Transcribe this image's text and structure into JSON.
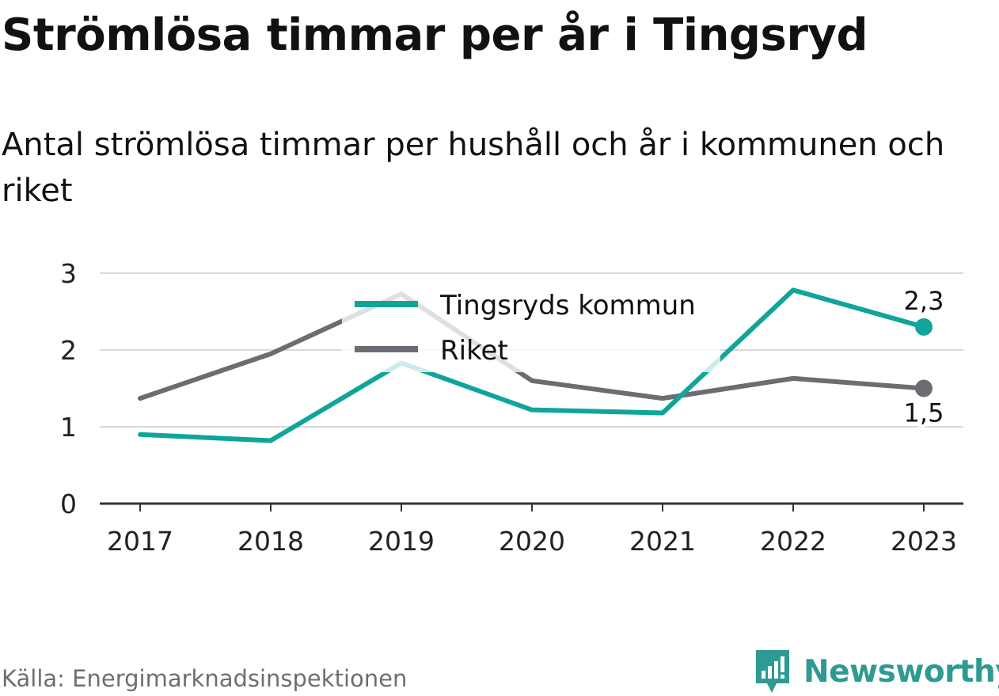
{
  "title": "Strömlösa timmar per år i Tingsryd",
  "subtitle": "Antal strömlösa timmar per hushåll och år i kommunen och riket",
  "source": "Källa: Energimarknadsinspektionen",
  "brand": "Newsworthy",
  "colors": {
    "kommun": "#0fa59a",
    "riket": "#6d6c73",
    "grid": "#d9d9d9",
    "axis": "#333333",
    "brand": "#2e9a92"
  },
  "chart_data": {
    "type": "line",
    "categories": [
      "2017",
      "2018",
      "2019",
      "2020",
      "2021",
      "2022",
      "2023"
    ],
    "ylim": [
      0,
      3
    ],
    "yticks": [
      "0",
      "1",
      "2",
      "3"
    ],
    "grid": true,
    "legend": "top-center",
    "series": [
      {
        "name": "Tingsryds kommun",
        "values": [
          0.9,
          0.82,
          1.83,
          1.22,
          1.18,
          2.78,
          2.3
        ],
        "end_label": "2,3"
      },
      {
        "name": "Riket",
        "values": [
          1.37,
          1.95,
          2.73,
          1.6,
          1.37,
          1.63,
          1.5
        ],
        "end_label": "1,5"
      }
    ]
  }
}
